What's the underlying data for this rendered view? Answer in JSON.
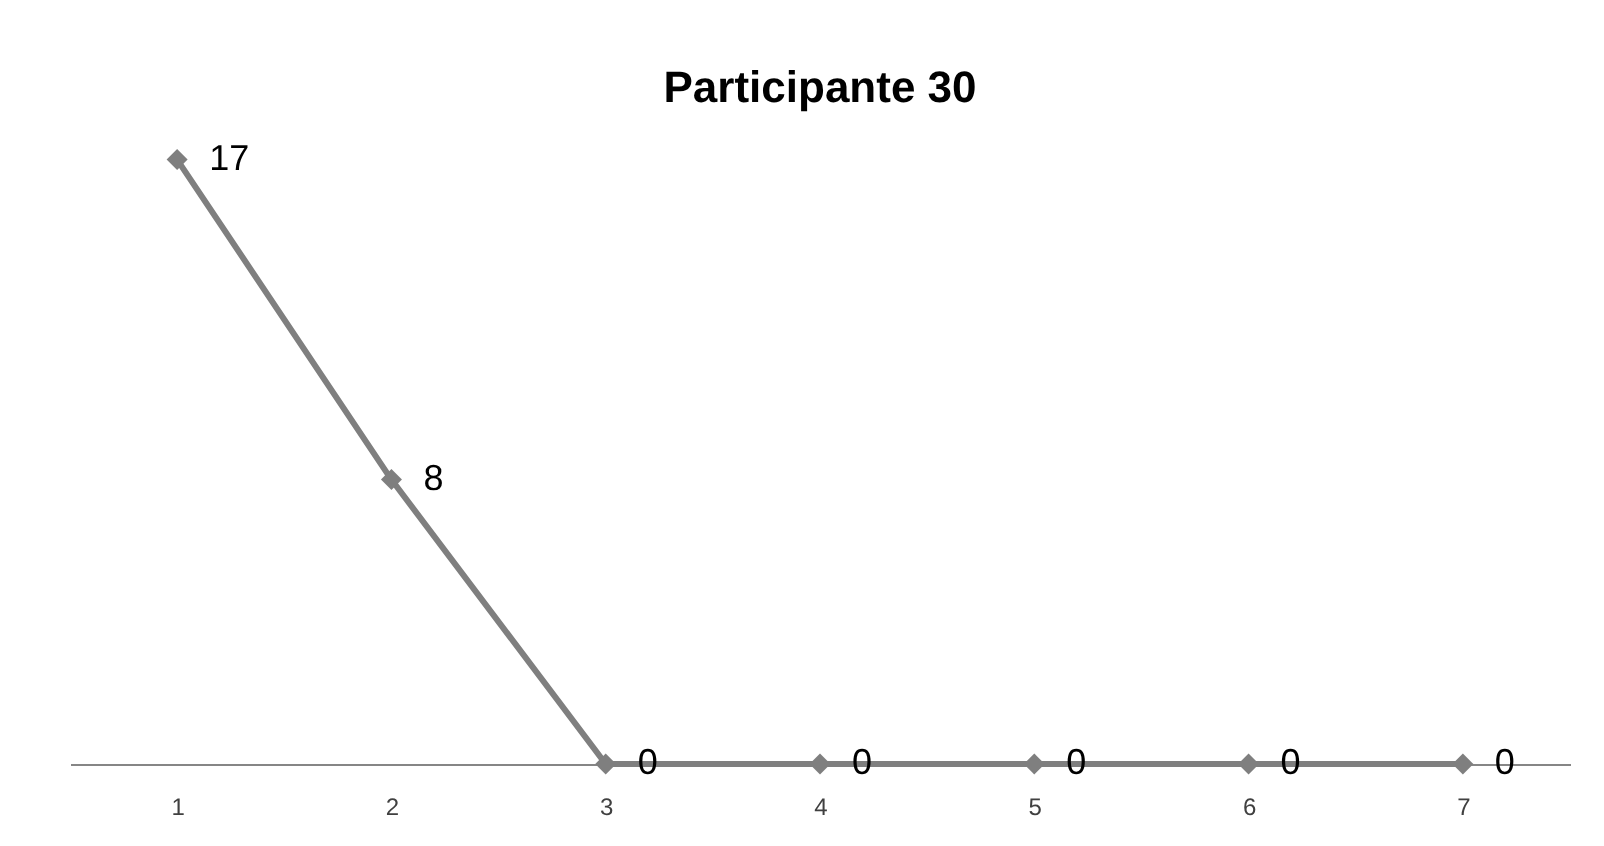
{
  "chart_data": {
    "type": "line",
    "title": "Participante 30",
    "categories": [
      "1",
      "2",
      "3",
      "4",
      "5",
      "6",
      "7"
    ],
    "series": [
      {
        "color": "#7f7f7f",
        "values": [
          17,
          8,
          0,
          0,
          0,
          0,
          0
        ]
      }
    ],
    "data_labels": true,
    "marker": "diamond",
    "line_style": "solid",
    "grid": false,
    "tick_labels": "x"
  }
}
